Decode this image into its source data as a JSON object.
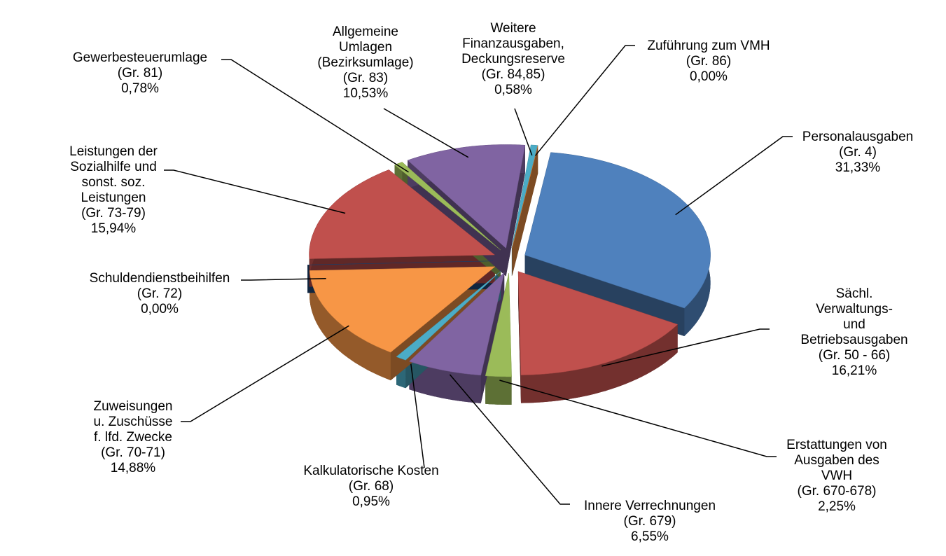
{
  "chart_data": {
    "type": "pie3d",
    "categories": [
      "Personalausgaben\n(Gr. 4)",
      "Sächl. Verwaltungs-\nund Betriebsausgaben\n(Gr. 50 - 66)",
      "Erstattungen von\nAusgaben des VWH\n(Gr. 670-678)",
      "Innere Verrechnungen\n(Gr. 679)",
      "Kalkulatorische Kosten\n(Gr. 68)",
      "Zuweisungen\nu. Zuschüsse\nf. lfd. Zwecke\n(Gr. 70-71)",
      "Schuldendienstbeihilfen\n(Gr. 72)",
      "Leistungen der\nSozialhilfe und\nsonst. soz.\nLeistungen\n(Gr. 73-79)",
      "Gewerbesteuerumlage\n(Gr. 81)",
      "Allgemeine\nUmlagen\n(Bezirksumlage)\n(Gr. 83)",
      "Weitere\nFinanzausgaben,\nDeckungsreserve\n(Gr. 84,85)",
      "Zuführung zum VMH\n(Gr. 86)"
    ],
    "values": [
      31.33,
      16.21,
      2.25,
      6.55,
      0.95,
      14.88,
      0.0,
      15.94,
      0.78,
      10.53,
      0.58,
      0.0
    ],
    "value_labels": [
      "31,33%",
      "16,21%",
      "2,25%",
      "6,55%",
      "0,95%",
      "14,88%",
      "0,00%",
      "15,94%",
      "0,78%",
      "10,53%",
      "0,58%",
      "0,00%"
    ],
    "colors": [
      "#4f81bd",
      "#c0504d",
      "#9bbb59",
      "#8064a2",
      "#4bacc6",
      "#f79646",
      "#1f497d",
      "#c0504d",
      "#9bbb59",
      "#8064a2",
      "#4bacc6",
      "#f79646"
    ]
  }
}
